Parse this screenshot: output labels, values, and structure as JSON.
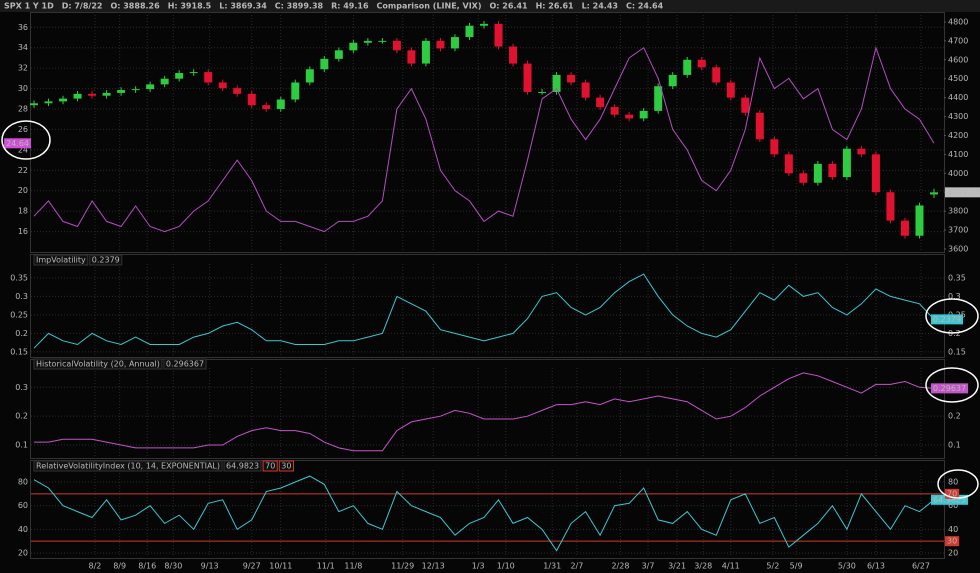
{
  "header": {
    "main": [
      "SPX 1 Y 1D",
      "D: 7/8/22",
      "O: 3888.26",
      "H: 3918.5",
      "L: 3869.34",
      "C: 3899.38",
      "R: 49.16"
    ],
    "comparison": [
      "Comparison (LINE, VIX)",
      "O: 26.41",
      "H: 26.61",
      "L: 24.43",
      "C: 24.64"
    ]
  },
  "chart_data": [
    {
      "type": "candlestick",
      "ylim": [
        3584,
        4842
      ],
      "yticks": [
        3600,
        3700,
        3800,
        3900,
        4000,
        4100,
        4200,
        4300,
        4400,
        4500,
        4600,
        4700,
        4800
      ],
      "y2lim": [
        14,
        37.3
      ],
      "y2ticks": [
        16,
        18,
        20,
        22,
        24,
        26,
        28,
        30,
        32,
        34,
        36
      ],
      "series": [
        {
          "type": "candlestick",
          "up_color": "#2ecc40",
          "down_color": "#e0122f",
          "open": [
            4360,
            4370,
            4380,
            4395,
            4420,
            4410,
            4425,
            4440,
            4445,
            4470,
            4500,
            4530,
            4535,
            4480,
            4450,
            4420,
            4360,
            4340,
            4390,
            4480,
            4550,
            4605,
            4650,
            4690,
            4700,
            4700,
            4650,
            4580,
            4700,
            4660,
            4720,
            4780,
            4790,
            4670,
            4580,
            4430,
            4430,
            4520,
            4480,
            4400,
            4350,
            4310,
            4290,
            4330,
            4460,
            4520,
            4600,
            4560,
            4480,
            4400,
            4320,
            4180,
            4100,
            4000,
            3950,
            4050,
            3980,
            4130,
            4100,
            3900,
            3750,
            3670,
            3888.26
          ],
          "high": [
            4385,
            4395,
            4410,
            4435,
            4435,
            4440,
            4455,
            4460,
            4485,
            4515,
            4545,
            4550,
            4550,
            4495,
            4465,
            4435,
            4375,
            4405,
            4495,
            4565,
            4620,
            4665,
            4705,
            4715,
            4715,
            4715,
            4665,
            4715,
            4715,
            4735,
            4795,
            4805,
            4805,
            4685,
            4595,
            4445,
            4535,
            4535,
            4495,
            4415,
            4365,
            4325,
            4345,
            4475,
            4535,
            4615,
            4615,
            4575,
            4495,
            4415,
            4335,
            4195,
            4115,
            4015,
            4065,
            4065,
            4145,
            4145,
            4115,
            3915,
            3765,
            3845,
            3918.5
          ],
          "low": [
            4345,
            4355,
            4365,
            4380,
            4395,
            4395,
            4410,
            4425,
            4430,
            4455,
            4485,
            4515,
            4465,
            4435,
            4405,
            4345,
            4325,
            4325,
            4375,
            4465,
            4535,
            4590,
            4635,
            4675,
            4685,
            4635,
            4565,
            4565,
            4645,
            4645,
            4705,
            4765,
            4655,
            4565,
            4415,
            4415,
            4415,
            4465,
            4385,
            4335,
            4295,
            4275,
            4275,
            4315,
            4445,
            4505,
            4545,
            4465,
            4385,
            4305,
            4165,
            4085,
            3985,
            3935,
            3935,
            3965,
            3965,
            4085,
            3885,
            3735,
            3655,
            3655,
            3869.34
          ],
          "close": [
            4370,
            4380,
            4395,
            4420,
            4410,
            4425,
            4440,
            4445,
            4470,
            4500,
            4530,
            4535,
            4480,
            4450,
            4420,
            4360,
            4340,
            4390,
            4480,
            4550,
            4605,
            4650,
            4690,
            4700,
            4700,
            4650,
            4580,
            4700,
            4660,
            4720,
            4780,
            4790,
            4670,
            4580,
            4430,
            4430,
            4520,
            4480,
            4400,
            4350,
            4310,
            4290,
            4330,
            4460,
            4520,
            4600,
            4560,
            4480,
            4400,
            4320,
            4180,
            4100,
            4000,
            3950,
            4050,
            3980,
            4130,
            4100,
            3900,
            3750,
            3670,
            3830,
            3899.38
          ]
        },
        {
          "type": "line",
          "axis": "y2",
          "color": "#b24fc0",
          "values": [
            17.5,
            19,
            17,
            16.5,
            19,
            17,
            16.5,
            18.5,
            16.5,
            16,
            16.5,
            18,
            19,
            21,
            23,
            21,
            18,
            17,
            17,
            16.5,
            16,
            17,
            17,
            17.5,
            19,
            28,
            30,
            27,
            22,
            20,
            19,
            17,
            18,
            17.5,
            23,
            29,
            30,
            27,
            25,
            27,
            30,
            33,
            34,
            31,
            26,
            24,
            21,
            20,
            22,
            26,
            33,
            30,
            31,
            29,
            30,
            26,
            25,
            28,
            34,
            30,
            28,
            27,
            24.64
          ]
        }
      ]
    },
    {
      "type": "line",
      "title": "ImpVolatility",
      "ylim": [
        0.139,
        0.382
      ],
      "yticks": [
        0.15,
        0.2,
        0.25,
        0.3,
        0.35
      ],
      "series": [
        {
          "color": "#3ec6d0",
          "values": [
            0.16,
            0.2,
            0.18,
            0.17,
            0.2,
            0.18,
            0.17,
            0.19,
            0.17,
            0.17,
            0.17,
            0.19,
            0.2,
            0.22,
            0.23,
            0.21,
            0.18,
            0.18,
            0.17,
            0.17,
            0.17,
            0.18,
            0.18,
            0.19,
            0.2,
            0.3,
            0.28,
            0.26,
            0.21,
            0.2,
            0.19,
            0.18,
            0.19,
            0.2,
            0.24,
            0.3,
            0.31,
            0.27,
            0.25,
            0.27,
            0.31,
            0.34,
            0.36,
            0.3,
            0.25,
            0.22,
            0.2,
            0.19,
            0.21,
            0.26,
            0.31,
            0.29,
            0.33,
            0.3,
            0.31,
            0.27,
            0.25,
            0.28,
            0.32,
            0.3,
            0.29,
            0.28,
            0.2379
          ]
        }
      ]
    },
    {
      "type": "line",
      "title": "HistoricalVolatility (20, Annual)",
      "ylim": [
        0.055,
        0.36
      ],
      "yticks": [
        0.1,
        0.2,
        0.3
      ],
      "series": [
        {
          "color": "#c455c9",
          "values": [
            0.11,
            0.11,
            0.12,
            0.12,
            0.12,
            0.11,
            0.1,
            0.09,
            0.09,
            0.09,
            0.09,
            0.09,
            0.1,
            0.1,
            0.13,
            0.15,
            0.16,
            0.15,
            0.15,
            0.14,
            0.11,
            0.09,
            0.08,
            0.08,
            0.08,
            0.15,
            0.18,
            0.19,
            0.2,
            0.22,
            0.21,
            0.19,
            0.19,
            0.19,
            0.2,
            0.22,
            0.24,
            0.24,
            0.25,
            0.24,
            0.26,
            0.25,
            0.26,
            0.27,
            0.26,
            0.25,
            0.22,
            0.19,
            0.2,
            0.23,
            0.27,
            0.3,
            0.33,
            0.35,
            0.34,
            0.32,
            0.3,
            0.28,
            0.31,
            0.31,
            0.32,
            0.3,
            0.296367
          ],
          "value_labels": [
            null,
            null,
            null,
            null,
            null,
            null,
            null,
            null,
            null,
            null,
            null,
            null,
            null,
            null,
            null,
            null,
            null,
            null,
            null,
            null,
            null,
            null,
            null,
            null,
            null,
            null,
            null,
            null,
            null,
            null,
            null,
            null,
            null,
            null,
            null,
            null,
            null,
            null,
            null,
            null,
            null,
            null,
            null,
            null,
            null,
            null,
            null,
            null,
            null,
            null,
            null,
            null,
            null,
            null,
            null,
            null,
            null,
            null,
            null,
            null,
            null,
            null,
            "0.29637"
          ]
        }
      ]
    },
    {
      "type": "line",
      "title": "RelativeVolatilityIndex (10, 14, EXPONENTIAL)",
      "ylim": [
        16.6,
        88.5
      ],
      "yticks": [
        20,
        40,
        60,
        80
      ],
      "levels": [
        70,
        30
      ],
      "level_color": "#d0392f",
      "xlim": [
        0,
        62
      ],
      "xticks": [
        {
          "value": 4.2,
          "label": "8/2"
        },
        {
          "value": 5.9,
          "label": "8/9"
        },
        {
          "value": 7.8,
          "label": "8/16"
        },
        {
          "value": 9.6,
          "label": "8/30"
        },
        {
          "value": 12.1,
          "label": "9/13"
        },
        {
          "value": 15.0,
          "label": "9/27"
        },
        {
          "value": 17.0,
          "label": "10/11"
        },
        {
          "value": 20.1,
          "label": "11/1"
        },
        {
          "value": 22.0,
          "label": "11/8"
        },
        {
          "value": 25.4,
          "label": "11/29"
        },
        {
          "value": 27.5,
          "label": "12/13"
        },
        {
          "value": 30.6,
          "label": "1/3"
        },
        {
          "value": 32.5,
          "label": "1/10"
        },
        {
          "value": 35.7,
          "label": "1/31"
        },
        {
          "value": 37.4,
          "label": "2/7"
        },
        {
          "value": 40.4,
          "label": "2/28"
        },
        {
          "value": 42.3,
          "label": "3/7"
        },
        {
          "value": 44.3,
          "label": "3/21"
        },
        {
          "value": 46.1,
          "label": "3/28"
        },
        {
          "value": 48.0,
          "label": "4/11"
        },
        {
          "value": 50.9,
          "label": "5/2"
        },
        {
          "value": 52.5,
          "label": "5/9"
        },
        {
          "value": 56.0,
          "label": "5/30"
        },
        {
          "value": 58.0,
          "label": "6/13"
        },
        {
          "value": 61.1,
          "label": "6/27"
        }
      ],
      "series": [
        {
          "color": "#3ec6d0",
          "values": [
            82,
            75,
            60,
            55,
            50,
            65,
            48,
            52,
            60,
            45,
            52,
            40,
            62,
            65,
            40,
            48,
            72,
            75,
            80,
            85,
            78,
            55,
            60,
            45,
            40,
            72,
            60,
            55,
            50,
            35,
            45,
            50,
            65,
            45,
            50,
            40,
            22,
            45,
            55,
            35,
            60,
            62,
            75,
            48,
            45,
            55,
            40,
            35,
            65,
            70,
            45,
            50,
            25,
            35,
            45,
            60,
            40,
            70,
            55,
            40,
            60,
            55,
            64.9823
          ]
        }
      ]
    }
  ]
}
